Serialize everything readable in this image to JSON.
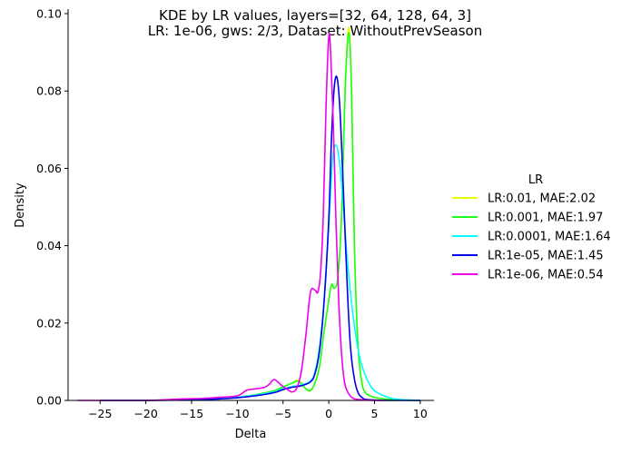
{
  "chart_data": {
    "type": "line",
    "title_line1": "KDE by LR values, layers=[32, 64, 128, 64, 3]",
    "title_line2": "LR: 1e-06, gws: 2/3, Dataset: WithoutPrevSeason",
    "xlabel": "Delta",
    "ylabel": "Density",
    "xlim": [
      -28.5,
      11.5
    ],
    "ylim": [
      0,
      0.1
    ],
    "x_ticks": [
      -25,
      -20,
      -15,
      -10,
      -5,
      0,
      5,
      10
    ],
    "x_tick_labels": [
      "−25",
      "−20",
      "−15",
      "−10",
      "−5",
      "0",
      "5",
      "10"
    ],
    "y_ticks": [
      0.0,
      0.02,
      0.04,
      0.06,
      0.08,
      0.1
    ],
    "y_tick_labels": [
      "0.00",
      "0.02",
      "0.04",
      "0.06",
      "0.08",
      "0.10"
    ],
    "grid": false,
    "legend": {
      "title": "LR",
      "placement": "right"
    },
    "series": [
      {
        "name": "LR:0.01, MAE:2.02",
        "color": "#e6ff00",
        "x": [
          -25,
          -20,
          -15,
          -12,
          -10,
          -8,
          -6,
          -5,
          -4,
          -3.5,
          -3,
          -2.5,
          -2,
          -1.5,
          -1,
          -0.5,
          0,
          0.3,
          0.6,
          1,
          1.4,
          1.8,
          2.2,
          2.5,
          2.8,
          3.2,
          3.6,
          4,
          5,
          6,
          7,
          8,
          10
        ],
        "values": [
          0,
          0,
          0.0003,
          0.0005,
          0.0008,
          0.0015,
          0.0025,
          0.0035,
          0.0045,
          0.0052,
          0.0045,
          0.003,
          0.0025,
          0.0045,
          0.009,
          0.018,
          0.026,
          0.03,
          0.029,
          0.032,
          0.048,
          0.082,
          0.0965,
          0.08,
          0.04,
          0.014,
          0.005,
          0.002,
          0.0008,
          0.0004,
          0.0002,
          0.0001,
          0
        ]
      },
      {
        "name": "LR:0.001, MAE:1.97",
        "color": "#1aff1a",
        "x": [
          -25,
          -20,
          -15,
          -12,
          -10,
          -8,
          -6,
          -5,
          -4,
          -3.5,
          -3,
          -2.5,
          -2,
          -1.5,
          -1,
          -0.5,
          0,
          0.3,
          0.6,
          1,
          1.4,
          1.8,
          2.2,
          2.5,
          2.8,
          3.2,
          3.6,
          4,
          5,
          6,
          7,
          8,
          10
        ],
        "values": [
          0,
          0,
          0.0003,
          0.0005,
          0.0008,
          0.0015,
          0.0025,
          0.0035,
          0.0045,
          0.005,
          0.0044,
          0.003,
          0.0026,
          0.0046,
          0.009,
          0.018,
          0.026,
          0.03,
          0.029,
          0.032,
          0.048,
          0.081,
          0.095,
          0.079,
          0.04,
          0.014,
          0.005,
          0.002,
          0.0008,
          0.0004,
          0.0002,
          0.0001,
          0
        ]
      },
      {
        "name": "LR:0.0001, MAE:1.64",
        "color": "#00ffff",
        "x": [
          -25,
          -20,
          -15,
          -12,
          -10,
          -8,
          -6,
          -5,
          -4,
          -3,
          -2,
          -1.5,
          -1,
          -0.5,
          0,
          0.4,
          0.8,
          1.2,
          1.6,
          2,
          2.5,
          3,
          3.5,
          4,
          4.5,
          5,
          6,
          7,
          8,
          10
        ],
        "values": [
          0,
          0,
          0.0002,
          0.0004,
          0.0008,
          0.0014,
          0.0022,
          0.003,
          0.0036,
          0.004,
          0.005,
          0.0075,
          0.014,
          0.026,
          0.045,
          0.062,
          0.066,
          0.061,
          0.05,
          0.037,
          0.025,
          0.016,
          0.01,
          0.0065,
          0.004,
          0.0025,
          0.0012,
          0.0005,
          0.0002,
          0
        ]
      },
      {
        "name": "LR:1e-05, MAE:1.45",
        "color": "#0000ee",
        "x": [
          -25,
          -20,
          -15,
          -12,
          -10,
          -8,
          -6,
          -5,
          -4,
          -3,
          -2,
          -1.5,
          -1,
          -0.5,
          0,
          0.3,
          0.6,
          0.9,
          1.2,
          1.5,
          1.8,
          2.1,
          2.4,
          2.8,
          3.2,
          3.6,
          4,
          5,
          6,
          8,
          10
        ],
        "values": [
          0,
          0,
          0.0002,
          0.0004,
          0.0007,
          0.0012,
          0.002,
          0.0028,
          0.0034,
          0.0038,
          0.0048,
          0.007,
          0.013,
          0.026,
          0.047,
          0.068,
          0.081,
          0.0835,
          0.076,
          0.06,
          0.042,
          0.025,
          0.013,
          0.0055,
          0.002,
          0.0008,
          0.0003,
          0.0001,
          0,
          0,
          0
        ]
      },
      {
        "name": "LR:1e-06, MAE:0.54",
        "color": "#ee00ee",
        "x": [
          -27.5,
          -25,
          -20,
          -16,
          -14,
          -12,
          -10,
          -9,
          -8,
          -7,
          -6.5,
          -6,
          -5.5,
          -5,
          -4.5,
          -4,
          -3.5,
          -3,
          -2.5,
          -2,
          -1.5,
          -1.2,
          -0.9,
          -0.6,
          -0.3,
          0,
          0.2,
          0.5,
          0.8,
          1.1,
          1.4,
          1.7,
          2,
          2.5,
          3,
          4,
          5,
          6
        ],
        "values": [
          0,
          0,
          0,
          0.0004,
          0.0005,
          0.0008,
          0.0012,
          0.0026,
          0.003,
          0.0034,
          0.0042,
          0.0054,
          0.0046,
          0.0036,
          0.0028,
          0.0022,
          0.0032,
          0.0075,
          0.017,
          0.028,
          0.0285,
          0.028,
          0.033,
          0.048,
          0.076,
          0.094,
          0.09,
          0.071,
          0.045,
          0.025,
          0.012,
          0.005,
          0.0025,
          0.0008,
          0.0003,
          0.0001,
          0,
          0
        ]
      }
    ]
  }
}
